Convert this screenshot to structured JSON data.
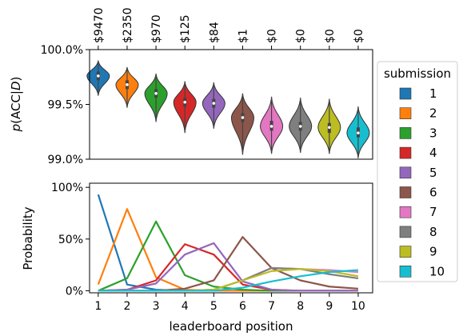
{
  "chart_data": [
    {
      "type": "violin",
      "ylabel": "p(ACC|D)",
      "ylabel_parts": {
        "p": "p",
        "open": "(ACC|",
        "d": "D",
        "close": ")"
      },
      "ylim": [
        99.0,
        100.0
      ],
      "yticks": [
        "99.0%",
        "99.5%",
        "100.0%"
      ],
      "ytick_values": [
        99.0,
        99.5,
        100.0
      ],
      "x": [
        1,
        2,
        3,
        4,
        5,
        6,
        7,
        8,
        9,
        10
      ],
      "top_labels": [
        "$9470",
        "$2350",
        "$970",
        "$125",
        "$84",
        "$1",
        "$0",
        "$0",
        "$0",
        "$0"
      ],
      "violins": [
        {
          "submission": 1,
          "min": 99.58,
          "q1": 99.72,
          "median": 99.76,
          "q3": 99.8,
          "max": 99.9
        },
        {
          "submission": 2,
          "min": 99.47,
          "q1": 99.64,
          "median": 99.68,
          "q3": 99.72,
          "max": 99.84
        },
        {
          "submission": 3,
          "min": 99.34,
          "q1": 99.56,
          "median": 99.6,
          "q3": 99.64,
          "max": 99.78
        },
        {
          "submission": 4,
          "min": 99.24,
          "q1": 99.48,
          "median": 99.52,
          "q3": 99.56,
          "max": 99.71
        },
        {
          "submission": 5,
          "min": 99.28,
          "q1": 99.47,
          "median": 99.51,
          "q3": 99.55,
          "max": 99.7
        },
        {
          "submission": 6,
          "min": 99.04,
          "q1": 99.34,
          "median": 99.38,
          "q3": 99.42,
          "max": 99.6
        },
        {
          "submission": 7,
          "min": 99.05,
          "q1": 99.26,
          "median": 99.3,
          "q3": 99.35,
          "max": 99.57
        },
        {
          "submission": 8,
          "min": 99.06,
          "q1": 99.26,
          "median": 99.3,
          "q3": 99.34,
          "max": 99.56
        },
        {
          "submission": 9,
          "min": 99.05,
          "q1": 99.24,
          "median": 99.29,
          "q3": 99.33,
          "max": 99.55
        },
        {
          "submission": 10,
          "min": 99.01,
          "q1": 99.2,
          "median": 99.24,
          "q3": 99.29,
          "max": 99.48
        }
      ]
    },
    {
      "type": "line",
      "xlabel": "leaderboard position",
      "ylabel": "Probability",
      "xlim": [
        0.7,
        10.5
      ],
      "ylim": [
        -2,
        104
      ],
      "yticks": [
        "0%",
        "50%",
        "100%"
      ],
      "ytick_values": [
        0,
        50,
        100
      ],
      "x": [
        1,
        2,
        3,
        4,
        5,
        6,
        7,
        8,
        9,
        10
      ],
      "xtick_labels": [
        "1",
        "2",
        "3",
        "4",
        "5",
        "6",
        "7",
        "8",
        "9",
        "10"
      ],
      "series": [
        {
          "name": "1",
          "values": [
            93,
            6,
            1,
            0,
            0,
            0,
            0,
            0,
            0,
            0
          ]
        },
        {
          "name": "2",
          "values": [
            6,
            79,
            13,
            1,
            0,
            0,
            0,
            0,
            0,
            0
          ]
        },
        {
          "name": "3",
          "values": [
            0,
            12,
            67,
            15,
            4,
            1,
            0,
            0,
            0,
            0
          ]
        },
        {
          "name": "4",
          "values": [
            0,
            1,
            10,
            45,
            35,
            6,
            1,
            0,
            0,
            0
          ]
        },
        {
          "name": "5",
          "values": [
            0,
            1,
            7,
            35,
            46,
            9,
            1,
            0,
            0,
            0
          ]
        },
        {
          "name": "6",
          "values": [
            0,
            0,
            0,
            2,
            10,
            52,
            22,
            10,
            4,
            2
          ]
        },
        {
          "name": "7",
          "values": [
            0,
            0,
            0,
            0,
            1,
            10,
            22,
            21,
            20,
            18
          ]
        },
        {
          "name": "8",
          "values": [
            0,
            0,
            0,
            0,
            1,
            10,
            22,
            21,
            16,
            12
          ]
        },
        {
          "name": "9",
          "values": [
            0,
            0,
            0,
            0,
            1,
            10,
            19,
            21,
            19,
            14
          ]
        },
        {
          "name": "10",
          "values": [
            0,
            0,
            0,
            0,
            0,
            3,
            9,
            14,
            18,
            20
          ]
        }
      ]
    }
  ],
  "legend": {
    "title": "submission",
    "placement": "right",
    "entries": [
      "1",
      "2",
      "3",
      "4",
      "5",
      "6",
      "7",
      "8",
      "9",
      "10"
    ]
  },
  "colors": [
    "#1f77b4",
    "#ff7f0e",
    "#2ca02c",
    "#d62728",
    "#9467bd",
    "#8c564b",
    "#e377c2",
    "#7f7f7f",
    "#bcbd22",
    "#17becf"
  ]
}
